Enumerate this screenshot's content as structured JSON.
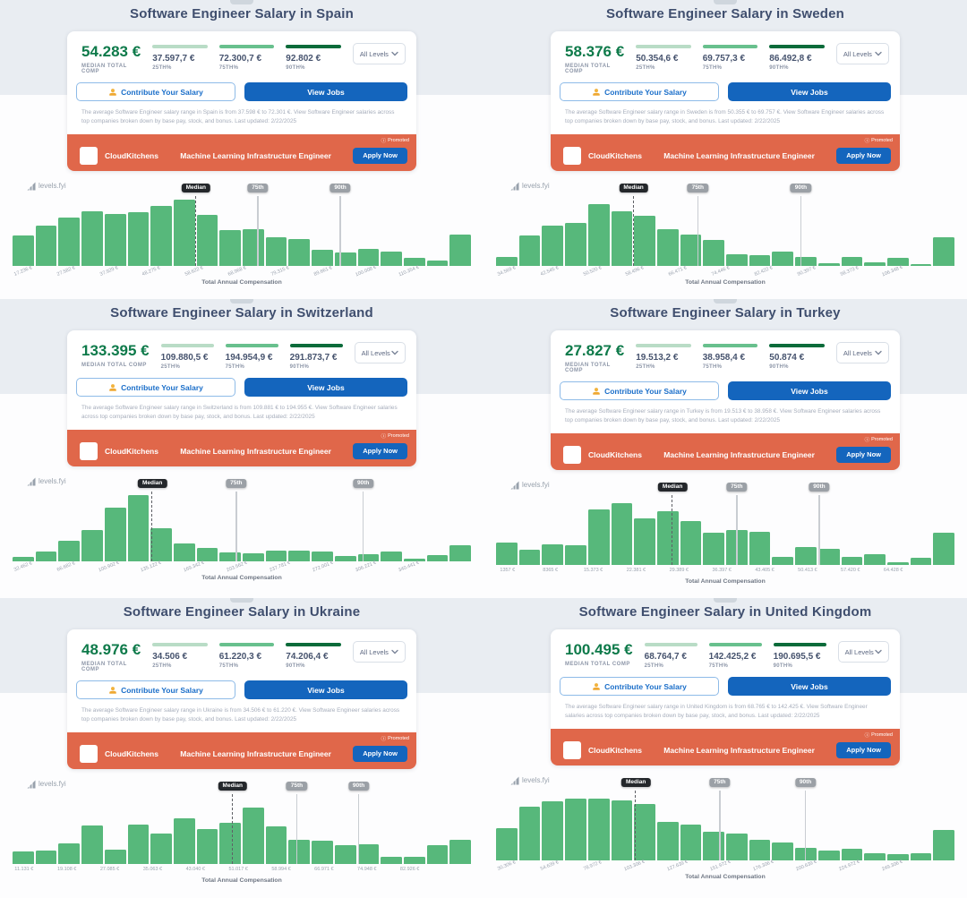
{
  "colors": {
    "accent_green": "#0e7a4a",
    "bar_green": "#57b87b",
    "banner_orange": "#e0674a",
    "button_blue": "#1465bd",
    "pct_25_bar": "#b9dcc6",
    "pct_75_bar": "#68c08d",
    "pct_90_bar": "#0b6b3a"
  },
  "panels": [
    {
      "title": "Software Engineer Salary in Spain",
      "card": {
        "median_value": "54.283 €",
        "median_label": "MEDIAN TOTAL COMP",
        "percentiles": [
          {
            "value": "37.597,7 €",
            "label": "25TH%",
            "bar_color": "#b9dcc6"
          },
          {
            "value": "72.300,7 €",
            "label": "75TH%",
            "bar_color": "#68c08d"
          },
          {
            "value": "92.802 €",
            "label": "90TH%",
            "bar_color": "#0b6b3a"
          }
        ],
        "level_filter": "All Levels",
        "contribute_label": "Contribute Your Salary",
        "view_jobs_label": "View Jobs",
        "description": "The average Software Engineer salary range in Spain is from 37.598 € to 72.301 €. View Software Engineer salaries across top companies broken down by base pay, stock, and bonus. Last updated: 2/22/2025"
      },
      "ad": {
        "promoted_label": "Promoted",
        "company": "CloudKitchens",
        "job_title": "Machine Learning Infrastructure Engineer",
        "apply_label": "Apply Now"
      },
      "chart_data": {
        "type": "bar",
        "brand": "levels.fyi",
        "xlabel": "Total Annual Compensation",
        "x_tick_labels": [
          "17.236 €",
          "27.582 €",
          "37.929 €",
          "48.275 €",
          "58.622 €",
          "68.968 €",
          "79.315 €",
          "89.661 €",
          "100.008 €",
          "110.354 €"
        ],
        "x_label_rotation": -22,
        "bar_heights_relative": [
          0.45,
          0.6,
          0.72,
          0.82,
          0.78,
          0.81,
          0.9,
          1.0,
          0.76,
          0.54,
          0.55,
          0.42,
          0.4,
          0.24,
          0.2,
          0.25,
          0.21,
          0.12,
          0.07,
          0.47
        ],
        "markers": [
          {
            "label": "Median",
            "kind": "median",
            "pos": 0.4
          },
          {
            "label": "75th",
            "kind": "pct",
            "pos": 0.535
          },
          {
            "label": "90th",
            "kind": "pct",
            "pos": 0.715
          }
        ]
      }
    },
    {
      "title": "Software Engineer Salary in Sweden",
      "card": {
        "median_value": "58.376 €",
        "median_label": "MEDIAN TOTAL COMP",
        "percentiles": [
          {
            "value": "50.354,6 €",
            "label": "25TH%",
            "bar_color": "#b9dcc6"
          },
          {
            "value": "69.757,3 €",
            "label": "75TH%",
            "bar_color": "#68c08d"
          },
          {
            "value": "86.492,8 €",
            "label": "90TH%",
            "bar_color": "#0b6b3a"
          }
        ],
        "level_filter": "All Levels",
        "contribute_label": "Contribute Your Salary",
        "view_jobs_label": "View Jobs",
        "description": "The average Software Engineer salary range in Sweden is from 50.355 € to 69.757 €. View Software Engineer salaries across top companies broken down by base pay, stock, and bonus. Last updated: 2/22/2025"
      },
      "ad": {
        "promoted_label": "Promoted",
        "company": "CloudKitchens",
        "job_title": "Machine Learning Infrastructure Engineer",
        "apply_label": "Apply Now"
      },
      "chart_data": {
        "type": "bar",
        "brand": "levels.fyi",
        "xlabel": "Total Annual Compensation",
        "x_tick_labels": [
          "34.569 €",
          "42.545 €",
          "50.520 €",
          "58.496 €",
          "66.471 €",
          "74.446 €",
          "82.422 €",
          "90.397 €",
          "98.373 €",
          "106.348 €"
        ],
        "x_label_rotation": -22,
        "bar_heights_relative": [
          0.13,
          0.45,
          0.6,
          0.64,
          0.92,
          0.82,
          0.75,
          0.55,
          0.47,
          0.38,
          0.17,
          0.15,
          0.21,
          0.13,
          0.03,
          0.13,
          0.05,
          0.11,
          0.02,
          0.42
        ],
        "markers": [
          {
            "label": "Median",
            "kind": "median",
            "pos": 0.3
          },
          {
            "label": "75th",
            "kind": "pct",
            "pos": 0.44
          },
          {
            "label": "90th",
            "kind": "pct",
            "pos": 0.665
          }
        ]
      }
    },
    {
      "title": "Software Engineer Salary in Switzerland",
      "card": {
        "median_value": "133.395 €",
        "median_label": "MEDIAN TOTAL COMP",
        "percentiles": [
          {
            "value": "109.880,5 €",
            "label": "25TH%",
            "bar_color": "#b9dcc6"
          },
          {
            "value": "194.954,9 €",
            "label": "75TH%",
            "bar_color": "#68c08d"
          },
          {
            "value": "291.873,7 €",
            "label": "90TH%",
            "bar_color": "#0b6b3a"
          }
        ],
        "level_filter": "All Levels",
        "contribute_label": "Contribute Your Salary",
        "view_jobs_label": "View Jobs",
        "description": "The average Software Engineer salary range in Switzerland is from 109.881 € to 194.955 €. View Software Engineer salaries across top companies broken down by base pay, stock, and bonus. Last updated: 2/22/2025"
      },
      "ad": {
        "promoted_label": "Promoted",
        "company": "CloudKitchens",
        "job_title": "Machine Learning Infrastructure Engineer",
        "apply_label": "Apply Now"
      },
      "chart_data": {
        "type": "bar",
        "brand": "levels.fyi",
        "xlabel": "Total Annual Compensation",
        "x_tick_labels": [
          "32.462 €",
          "66.682 €",
          "100.902 €",
          "135.122 €",
          "169.342 €",
          "203.562 €",
          "237.781 €",
          "272.001 €",
          "306.221 €",
          "340.441 €"
        ],
        "x_label_rotation": -22,
        "bar_heights_relative": [
          0.06,
          0.14,
          0.31,
          0.47,
          0.8,
          1.0,
          0.5,
          0.26,
          0.2,
          0.13,
          0.11,
          0.16,
          0.16,
          0.14,
          0.08,
          0.1,
          0.14,
          0.04,
          0.09,
          0.24
        ],
        "markers": [
          {
            "label": "Median",
            "kind": "median",
            "pos": 0.305
          },
          {
            "label": "75th",
            "kind": "pct",
            "pos": 0.488
          },
          {
            "label": "90th",
            "kind": "pct",
            "pos": 0.765
          }
        ]
      }
    },
    {
      "title": "Software Engineer Salary in Turkey",
      "card": {
        "median_value": "27.827 €",
        "median_label": "MEDIAN TOTAL COMP",
        "percentiles": [
          {
            "value": "19.513,2 €",
            "label": "25TH%",
            "bar_color": "#b9dcc6"
          },
          {
            "value": "38.958,4 €",
            "label": "75TH%",
            "bar_color": "#68c08d"
          },
          {
            "value": "50.874 €",
            "label": "90TH%",
            "bar_color": "#0b6b3a"
          }
        ],
        "level_filter": "All Levels",
        "contribute_label": "Contribute Your Salary",
        "view_jobs_label": "View Jobs",
        "description": "The average Software Engineer salary range in Turkey is from 19.513 € to 38.958 €. View Software Engineer salaries across top companies broken down by base pay, stock, and bonus. Last updated: 2/22/2025"
      },
      "ad": {
        "promoted_label": "Promoted",
        "company": "CloudKitchens",
        "job_title": "Machine Learning Infrastructure Engineer",
        "apply_label": "Apply Now"
      },
      "chart_data": {
        "type": "bar",
        "brand": "levels.fyi",
        "xlabel": "Total Annual Compensation",
        "x_tick_labels": [
          "1357 €",
          "8365 €",
          "15.373 €",
          "22.381 €",
          "29.389 €",
          "36.397 €",
          "43.405 €",
          "50.413 €",
          "57.420 €",
          "64.428 €"
        ],
        "x_label_rotation": 0,
        "bar_heights_relative": [
          0.33,
          0.22,
          0.3,
          0.29,
          0.83,
          0.93,
          0.7,
          0.8,
          0.65,
          0.48,
          0.52,
          0.5,
          0.12,
          0.27,
          0.23,
          0.11,
          0.15,
          0.03,
          0.1,
          0.48
        ],
        "markers": [
          {
            "label": "Median",
            "kind": "median",
            "pos": 0.385
          },
          {
            "label": "75th",
            "kind": "pct",
            "pos": 0.525
          },
          {
            "label": "90th",
            "kind": "pct",
            "pos": 0.705
          }
        ]
      }
    },
    {
      "title": "Software Engineer Salary in Ukraine",
      "card": {
        "median_value": "48.976 €",
        "median_label": "MEDIAN TOTAL COMP",
        "percentiles": [
          {
            "value": "34.506 €",
            "label": "25TH%",
            "bar_color": "#b9dcc6"
          },
          {
            "value": "61.220,3 €",
            "label": "75TH%",
            "bar_color": "#68c08d"
          },
          {
            "value": "74.206,4 €",
            "label": "90TH%",
            "bar_color": "#0b6b3a"
          }
        ],
        "level_filter": "All Levels",
        "contribute_label": "Contribute Your Salary",
        "view_jobs_label": "View Jobs",
        "description": "The average Software Engineer salary range in Ukraine is from 34.506 € to 61.220 €. View Software Engineer salaries across top companies broken down by base pay, stock, and bonus. Last updated: 2/22/2025"
      },
      "ad": {
        "promoted_label": "Promoted",
        "company": "CloudKitchens",
        "job_title": "Machine Learning Infrastructure Engineer",
        "apply_label": "Apply Now"
      },
      "chart_data": {
        "type": "bar",
        "brand": "levels.fyi",
        "xlabel": "Total Annual Compensation",
        "x_tick_labels": [
          "11.131 €",
          "19.108 €",
          "27.085 €",
          "35.063 €",
          "43.040 €",
          "51.017 €",
          "58.994 €",
          "66.971 €",
          "74.948 €",
          "82.926 €"
        ],
        "x_label_rotation": 0,
        "bar_heights_relative": [
          0.18,
          0.19,
          0.3,
          0.57,
          0.21,
          0.59,
          0.45,
          0.68,
          0.52,
          0.61,
          0.85,
          0.56,
          0.36,
          0.35,
          0.28,
          0.29,
          0.1,
          0.1,
          0.28,
          0.36
        ],
        "markers": [
          {
            "label": "Median",
            "kind": "median",
            "pos": 0.48
          },
          {
            "label": "75th",
            "kind": "pct",
            "pos": 0.62
          },
          {
            "label": "90th",
            "kind": "pct",
            "pos": 0.755
          }
        ]
      }
    },
    {
      "title": "Software Engineer Salary in United Kingdom",
      "card": {
        "median_value": "100.495 €",
        "median_label": "MEDIAN TOTAL COMP",
        "percentiles": [
          {
            "value": "68.764,7 €",
            "label": "25TH%",
            "bar_color": "#b9dcc6"
          },
          {
            "value": "142.425,2 €",
            "label": "75TH%",
            "bar_color": "#68c08d"
          },
          {
            "value": "190.695,5 €",
            "label": "90TH%",
            "bar_color": "#0b6b3a"
          }
        ],
        "level_filter": "All Levels",
        "contribute_label": "Contribute Your Salary",
        "view_jobs_label": "View Jobs",
        "description": "The average Software Engineer salary range in United Kingdom is from 68.765 € to 142.425 €. View Software Engineer salaries across top companies broken down by base pay, stock, and bonus. Last updated: 2/22/2025"
      },
      "ad": {
        "promoted_label": "Promoted",
        "company": "CloudKitchens",
        "job_title": "Machine Learning Infrastructure Engineer",
        "apply_label": "Apply Now"
      },
      "chart_data": {
        "type": "bar",
        "brand": "levels.fyi",
        "xlabel": "Total Annual Compensation",
        "x_tick_labels": [
          "30.306 €",
          "54.639 €",
          "78.972 €",
          "103.306 €",
          "127.639 €",
          "151.972 €",
          "176.306 €",
          "200.639 €",
          "224.972 €",
          "249.306 €"
        ],
        "x_label_rotation": -22,
        "bar_heights_relative": [
          0.48,
          0.8,
          0.88,
          0.92,
          0.93,
          0.9,
          0.85,
          0.58,
          0.53,
          0.42,
          0.4,
          0.31,
          0.26,
          0.18,
          0.14,
          0.17,
          0.1,
          0.09,
          0.1,
          0.45
        ],
        "markers": [
          {
            "label": "Median",
            "kind": "median",
            "pos": 0.305
          },
          {
            "label": "75th",
            "kind": "pct",
            "pos": 0.488
          },
          {
            "label": "90th",
            "kind": "pct",
            "pos": 0.675
          }
        ]
      }
    }
  ]
}
